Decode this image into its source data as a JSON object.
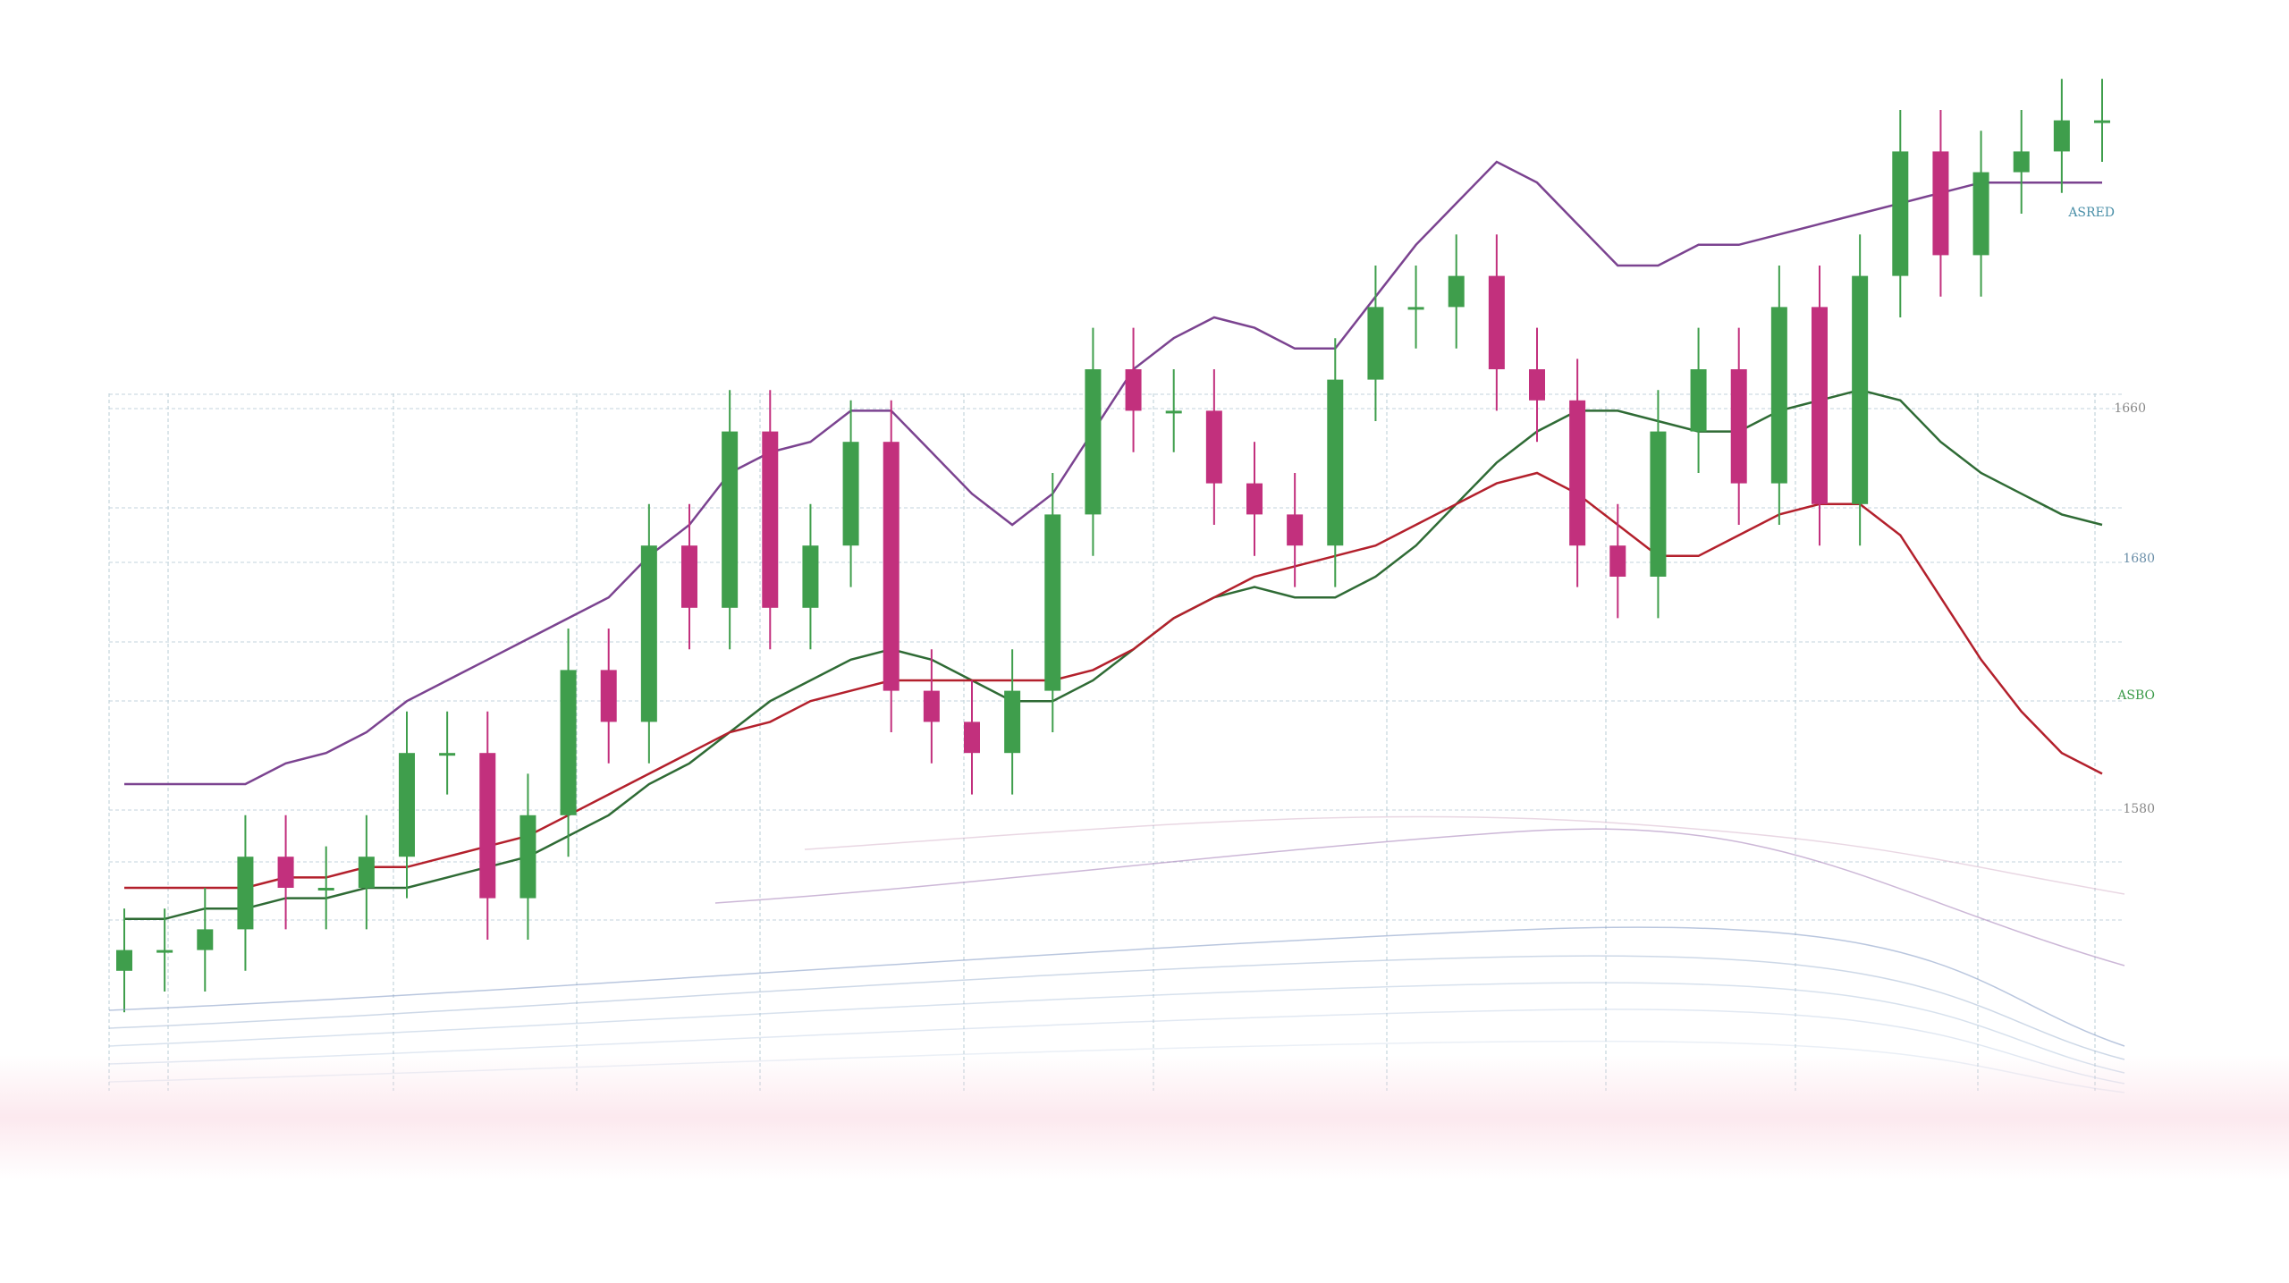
{
  "chart_data": {
    "type": "candlestick",
    "categories": [
      null,
      null,
      null,
      null,
      null,
      null,
      null,
      null,
      null,
      null,
      null,
      null,
      null,
      null,
      null,
      null,
      null,
      null,
      null,
      null,
      null,
      null,
      null,
      null,
      null,
      null,
      null,
      null,
      null,
      null,
      null,
      null,
      null,
      null,
      null,
      null,
      null,
      null,
      null,
      null,
      null,
      null,
      null,
      null,
      null,
      null,
      null,
      null,
      null,
      null
    ],
    "open": [
      12,
      14,
      14,
      16,
      23,
      20,
      20,
      23,
      33,
      33,
      19,
      27,
      41,
      36,
      53,
      47,
      64,
      47,
      53,
      63,
      39,
      36,
      33,
      39,
      56,
      70,
      66,
      66,
      59,
      56,
      53,
      69,
      76,
      76,
      79,
      70,
      67,
      53,
      50,
      64,
      70,
      59,
      76,
      57,
      79,
      91,
      81,
      89,
      91,
      94
    ],
    "high": [
      18,
      18,
      20,
      27,
      27,
      24,
      27,
      37,
      37,
      37,
      31,
      45,
      45,
      57,
      57,
      68,
      68,
      57,
      67,
      67,
      43,
      40,
      43,
      60,
      74,
      74,
      70,
      70,
      63,
      60,
      73,
      80,
      80,
      83,
      83,
      74,
      71,
      57,
      68,
      74,
      74,
      80,
      80,
      83,
      95,
      95,
      93,
      95,
      98,
      98
    ],
    "low": [
      8,
      10,
      10,
      12,
      16,
      16,
      16,
      19,
      29,
      15,
      15,
      23,
      32,
      32,
      43,
      43,
      43,
      43,
      49,
      35,
      32,
      29,
      29,
      35,
      52,
      62,
      62,
      55,
      52,
      49,
      49,
      65,
      72,
      72,
      66,
      63,
      49,
      46,
      46,
      60,
      55,
      55,
      53,
      53,
      75,
      77,
      77,
      85,
      87,
      90
    ],
    "close": [
      14,
      14,
      16,
      23,
      20,
      20,
      23,
      33,
      33,
      19,
      27,
      41,
      36,
      53,
      47,
      64,
      47,
      53,
      63,
      39,
      36,
      33,
      39,
      56,
      70,
      66,
      66,
      59,
      56,
      53,
      69,
      76,
      76,
      79,
      70,
      67,
      53,
      50,
      64,
      70,
      59,
      76,
      57,
      79,
      91,
      81,
      89,
      91,
      94,
      94
    ],
    "up_color": "#3f9e4c",
    "down_color": "#c2307d",
    "series": [
      {
        "color": "#7b4390",
        "values": [
          30,
          30,
          30,
          30,
          32,
          33,
          35,
          38,
          40,
          42,
          44,
          46,
          48,
          52,
          55,
          60,
          62,
          63,
          66,
          66,
          62,
          58,
          55,
          58,
          64,
          70,
          73,
          75,
          74,
          72,
          72,
          77,
          82,
          86,
          90,
          88,
          84,
          80,
          80,
          82,
          82,
          83,
          84,
          85,
          86,
          87,
          88,
          88,
          88,
          88
        ]
      },
      {
        "color": "#2f6b35",
        "values": [
          17,
          17,
          18,
          18,
          19,
          19,
          20,
          20,
          21,
          22,
          23,
          25,
          27,
          30,
          32,
          35,
          38,
          40,
          42,
          43,
          42,
          40,
          38,
          38,
          40,
          43,
          46,
          48,
          49,
          48,
          48,
          50,
          53,
          57,
          61,
          64,
          66,
          66,
          65,
          64,
          64,
          66,
          67,
          68,
          67,
          63,
          60,
          58,
          56,
          55
        ]
      },
      {
        "color": "#b3202c",
        "values": [
          20,
          20,
          20,
          20,
          21,
          21,
          22,
          22,
          23,
          24,
          25,
          27,
          29,
          31,
          33,
          35,
          36,
          38,
          39,
          40,
          40,
          40,
          40,
          40,
          41,
          43,
          46,
          48,
          50,
          51,
          52,
          53,
          55,
          57,
          59,
          60,
          58,
          55,
          52,
          52,
          54,
          56,
          57,
          57,
          54,
          48,
          42,
          37,
          33,
          31
        ]
      }
    ],
    "ylim": [
      0,
      100
    ],
    "grid": true,
    "right_labels": [
      "ASRED",
      "1660",
      "1680",
      "ASBO",
      "1580"
    ]
  }
}
